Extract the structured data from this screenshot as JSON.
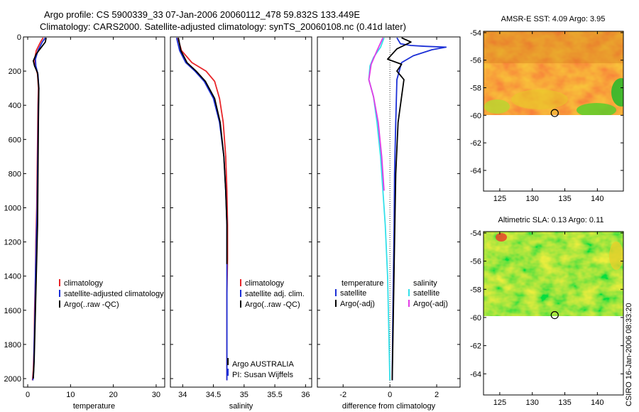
{
  "title": {
    "line1": "Argo profile: CS 5900339_33 07-Jan-2006 20060112_478 59.832S 133.449E",
    "line2": "Climatology: CARS2000. Satellite-adjusted climatology: synTS_20060108.nc (0.41d later)"
  },
  "side_text": "CSIRO 16-Jan-2006 08:33:20",
  "colors": {
    "climatology": "#e8262a",
    "satellite": "#1b2fd6",
    "argo": "#000000",
    "sat_diff": "#33e0ea",
    "argo_diff": "#e23be6"
  },
  "chart_data": [
    {
      "type": "line",
      "name": "temperature-panel",
      "xlabel": "temperature",
      "ylabel": "",
      "xlim": [
        -1,
        32
      ],
      "ylim": [
        2050,
        0
      ],
      "xticks": [
        0,
        10,
        20,
        30
      ],
      "yticks": [
        0,
        200,
        400,
        600,
        800,
        1000,
        1200,
        1400,
        1600,
        1800,
        2000
      ],
      "legend": [
        "climatology",
        "satellite-adjusted climatology",
        "Argo(..raw -QC)"
      ],
      "series": [
        {
          "name": "climatology",
          "color_key": "climatology",
          "x": [
            3.6,
            3.0,
            2.0,
            1.6,
            1.8,
            2.3,
            2.5,
            2.4,
            2.3,
            2.2,
            2.1,
            1.9,
            1.8,
            1.6,
            1.5,
            1.3,
            1.1
          ],
          "y": [
            5,
            30,
            80,
            130,
            170,
            220,
            300,
            400,
            600,
            800,
            1000,
            1200,
            1400,
            1600,
            1800,
            1950,
            2010
          ]
        },
        {
          "name": "satellite-adjusted climatology",
          "color_key": "satellite",
          "x": [
            4.1,
            3.4,
            2.4,
            1.8,
            1.9,
            2.4,
            2.6,
            2.5,
            2.4,
            2.3,
            2.2,
            2.0,
            1.8,
            1.7,
            1.5,
            1.4,
            1.2
          ],
          "y": [
            5,
            30,
            80,
            130,
            170,
            220,
            300,
            400,
            600,
            800,
            1000,
            1200,
            1400,
            1600,
            1800,
            1950,
            2010
          ]
        },
        {
          "name": "Argo(..raw -QC)",
          "color_key": "argo",
          "x": [
            4.3,
            4.1,
            3.2,
            2.0,
            1.3,
            1.6,
            2.3,
            2.6,
            2.5,
            2.4,
            2.3,
            2.1,
            1.9,
            1.7,
            1.5,
            1.3
          ],
          "y": [
            5,
            30,
            60,
            100,
            140,
            170,
            210,
            300,
            500,
            800,
            1100,
            1300,
            1500,
            1700,
            1900,
            2000
          ]
        }
      ]
    },
    {
      "type": "line",
      "name": "salinity-panel",
      "xlabel": "salinity",
      "ylabel": "",
      "xlim": [
        33.8,
        36.1
      ],
      "ylim": [
        2050,
        0
      ],
      "xticks": [
        34,
        34.5,
        35,
        35.5,
        36
      ],
      "legend": [
        "climatology",
        "satellite adj. clim.",
        "Argo(..raw -QC)"
      ],
      "footer": [
        "Argo AUSTRALIA",
        "PI: Susan Wijffels"
      ],
      "series": [
        {
          "name": "climatology",
          "color_key": "climatology",
          "x": [
            33.92,
            33.98,
            34.15,
            34.38,
            34.52,
            34.6,
            34.66,
            34.7,
            34.72,
            34.73,
            34.73,
            34.72,
            34.72,
            34.72
          ],
          "y": [
            5,
            80,
            150,
            200,
            260,
            360,
            500,
            700,
            900,
            1100,
            1300,
            1500,
            1800,
            2010
          ]
        },
        {
          "name": "satellite adj. clim.",
          "color_key": "satellite",
          "x": [
            33.9,
            33.95,
            34.05,
            34.2,
            34.35,
            34.5,
            34.6,
            34.67,
            34.7,
            34.72,
            34.72,
            34.72,
            34.72
          ],
          "y": [
            5,
            80,
            150,
            200,
            260,
            360,
            500,
            700,
            900,
            1100,
            1400,
            1800,
            2010
          ]
        },
        {
          "name": "Argo(..raw -QC)",
          "color_key": "argo",
          "x": [
            33.93,
            33.97,
            34.07,
            34.22,
            34.37,
            34.52,
            34.61,
            34.67,
            34.7,
            34.72,
            34.72
          ],
          "y": [
            5,
            80,
            150,
            200,
            260,
            360,
            500,
            700,
            900,
            1100,
            1330
          ]
        }
      ]
    },
    {
      "type": "line",
      "name": "difference-panel",
      "xlabel": "difference from climatology",
      "ylabel": "",
      "xlim": [
        -3.1,
        3.0
      ],
      "ylim": [
        2050,
        0
      ],
      "xticks": [
        -2,
        0,
        2
      ],
      "legend_temperature": {
        "heading": "temperature",
        "items": [
          "satellite",
          "Argo(-adj)"
        ]
      },
      "legend_salinity": {
        "heading": "salinity",
        "items": [
          "satellite",
          "Argo(-adj)"
        ]
      },
      "series": [
        {
          "name": "temperature satellite",
          "color_key": "satellite",
          "x": [
            0.3,
            0.45,
            0.9,
            1.5,
            2.4,
            1.8,
            1.0,
            0.5,
            0.3,
            0.25,
            0.2,
            0.18,
            0.15,
            0.12,
            0.1
          ],
          "y": [
            5,
            40,
            50,
            55,
            60,
            75,
            110,
            150,
            250,
            500,
            800,
            1100,
            1400,
            1700,
            2010
          ]
        },
        {
          "name": "temperature Argo(-adj)",
          "color_key": "argo",
          "x": [
            0.5,
            0.9,
            0.6,
            0.3,
            -0.1,
            0.5,
            0.3,
            0.6,
            0.5,
            0.35,
            0.25,
            0.2,
            0.15,
            0.1
          ],
          "y": [
            5,
            30,
            50,
            70,
            130,
            160,
            200,
            250,
            350,
            500,
            800,
            1200,
            1600,
            2010
          ]
        },
        {
          "name": "salinity satellite",
          "color_key": "sat_diff",
          "x": [
            -0.25,
            -0.4,
            -0.7,
            -0.85,
            -0.9,
            -0.7,
            -0.55,
            -0.4,
            -0.3,
            -0.2,
            -0.1,
            -0.05,
            0
          ],
          "y": [
            5,
            60,
            120,
            170,
            250,
            350,
            500,
            700,
            900,
            1100,
            1400,
            1700,
            2010
          ]
        },
        {
          "name": "salinity Argo(-adj)",
          "color_key": "argo_diff",
          "x": [
            -0.3,
            -0.55,
            -0.8,
            -0.9,
            -0.7,
            -0.5,
            -0.35,
            -0.25
          ],
          "y": [
            5,
            80,
            160,
            250,
            350,
            500,
            700,
            900
          ]
        }
      ]
    },
    {
      "type": "heatmap",
      "name": "sst-map",
      "title": "AMSR-E SST: 4.09 Argo: 3.95",
      "xlim": [
        122.5,
        144
      ],
      "ylim": [
        -65.5,
        -53.9
      ],
      "xticks": [
        125,
        130,
        135,
        140
      ],
      "yticks": [
        -54,
        -56,
        -58,
        -60,
        -62,
        -64
      ],
      "data_lat_range": [
        -54,
        -60.1
      ],
      "marker": {
        "lon": 133.449,
        "lat": -59.832
      }
    },
    {
      "type": "heatmap",
      "name": "sla-map",
      "title": "Altimetric SLA: 0.13 Argo: 0.11",
      "xlim": [
        122.5,
        144
      ],
      "ylim": [
        -65.5,
        -53.9
      ],
      "xticks": [
        125,
        130,
        135,
        140
      ],
      "yticks": [
        -54,
        -56,
        -58,
        -60,
        -62,
        -64
      ],
      "data_lat_range": [
        -54,
        -60.1
      ],
      "marker": {
        "lon": 133.449,
        "lat": -59.832
      }
    }
  ]
}
